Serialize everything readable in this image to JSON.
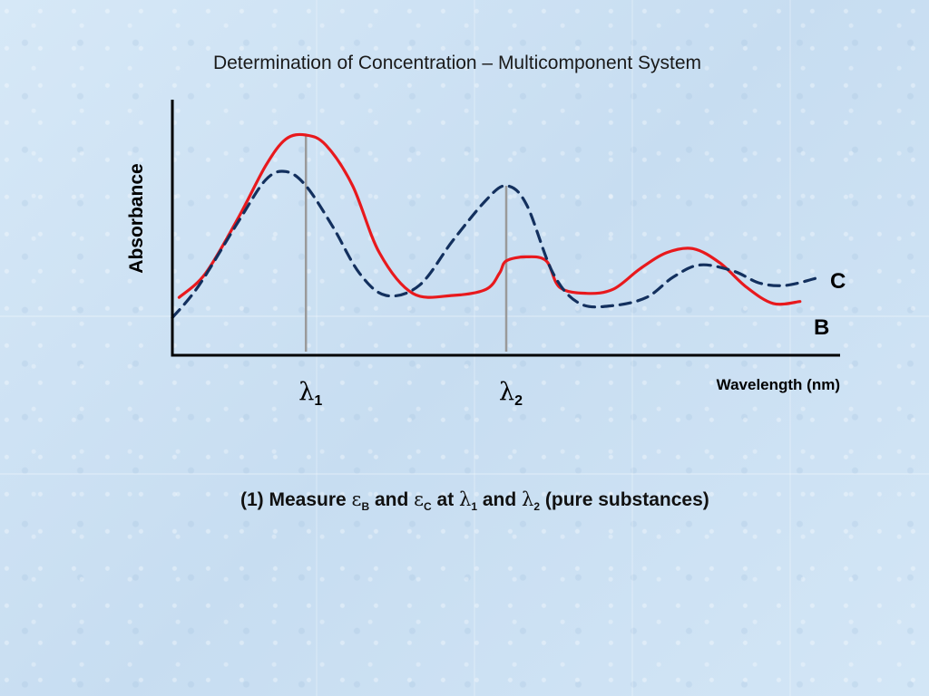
{
  "slide": {
    "caption": {
      "prefix": "(1)  Measure ",
      "eps": "ε",
      "sub_b": "B",
      "and1": " and ",
      "sub_c": "C",
      "at": " at ",
      "lambda": "λ",
      "one": "1",
      "and2": " and ",
      "two": "2",
      "suffix": " (pure substances)"
    }
  },
  "chart_data": {
    "type": "line",
    "title": "Determination of Concentration – Multicomponent System",
    "xlabel": "Wavelength (nm)",
    "ylabel": "Absorbance",
    "x_markers": [
      {
        "symbol": "λ",
        "sub": "1",
        "x": 0.2
      },
      {
        "symbol": "λ",
        "sub": "2",
        "x": 0.5
      }
    ],
    "xlim": [
      0,
      1
    ],
    "ylim": [
      0,
      1
    ],
    "colors": {
      "B": "#e8191d",
      "C": "#13305e",
      "axis": "#000000",
      "marker": "#9a9a9a"
    },
    "series": [
      {
        "name": "B",
        "style": "solid",
        "x": [
          0.01,
          0.05,
          0.1,
          0.14,
          0.17,
          0.2,
          0.23,
          0.27,
          0.31,
          0.36,
          0.42,
          0.47,
          0.49,
          0.5,
          0.53,
          0.56,
          0.58,
          0.62,
          0.66,
          0.7,
          0.74,
          0.78,
          0.82,
          0.86,
          0.9,
          0.94
        ],
        "y": [
          0.2,
          0.32,
          0.6,
          0.85,
          0.98,
          1.0,
          0.95,
          0.75,
          0.42,
          0.22,
          0.21,
          0.24,
          0.32,
          0.38,
          0.4,
          0.38,
          0.25,
          0.22,
          0.24,
          0.34,
          0.42,
          0.44,
          0.37,
          0.25,
          0.17,
          0.18
        ]
      },
      {
        "name": "C",
        "style": "dashed",
        "x": [
          0.0,
          0.04,
          0.1,
          0.14,
          0.17,
          0.2,
          0.24,
          0.28,
          0.32,
          0.37,
          0.42,
          0.47,
          0.5,
          0.53,
          0.57,
          0.61,
          0.66,
          0.71,
          0.75,
          0.79,
          0.84,
          0.88,
          0.92,
          0.97
        ],
        "y": [
          0.1,
          0.26,
          0.58,
          0.78,
          0.82,
          0.75,
          0.55,
          0.32,
          0.21,
          0.26,
          0.48,
          0.68,
          0.75,
          0.66,
          0.32,
          0.17,
          0.16,
          0.2,
          0.3,
          0.36,
          0.33,
          0.27,
          0.26,
          0.3
        ]
      }
    ]
  }
}
